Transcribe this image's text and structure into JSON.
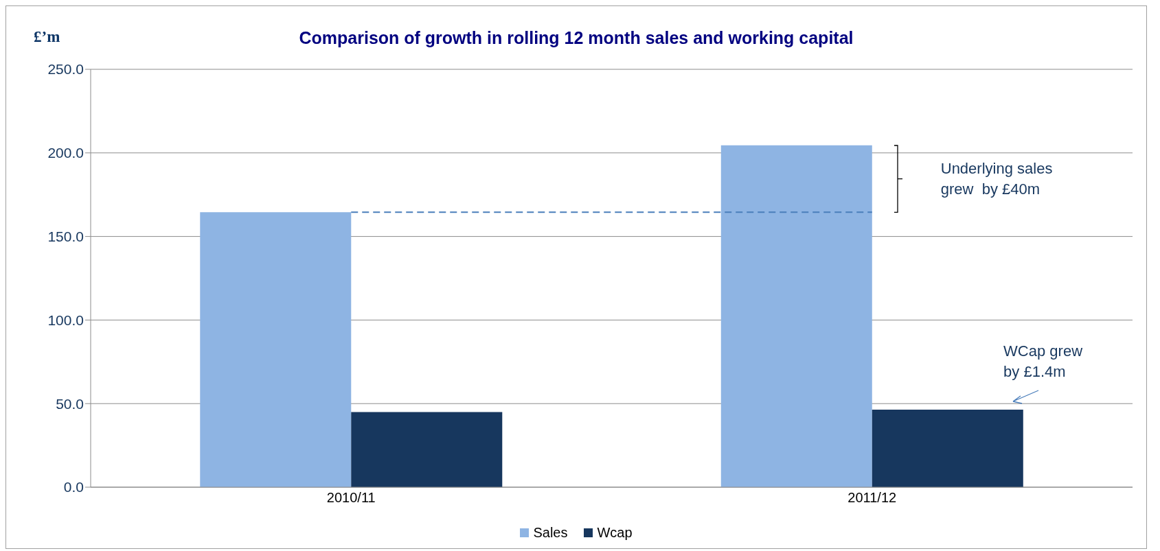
{
  "chart_data": {
    "type": "bar",
    "title": "Comparison of growth in rolling 12 month sales and working capital",
    "ylabel": "£’m",
    "categories": [
      "2010/11",
      "2011/12"
    ],
    "series": [
      {
        "name": "Sales",
        "color": "#8eb4e3",
        "values": [
          164.5,
          204.5
        ]
      },
      {
        "name": "Wcap",
        "color": "#17375e",
        "values": [
          45.0,
          46.4
        ]
      }
    ],
    "ylim": [
      0,
      250
    ],
    "yticks": [
      {
        "value": 0,
        "label": "0.0"
      },
      {
        "value": 50,
        "label": "50.0"
      },
      {
        "value": 100,
        "label": "100.0"
      },
      {
        "value": 150,
        "label": "150.0"
      },
      {
        "value": 200,
        "label": "200.0"
      },
      {
        "value": 250,
        "label": "250.0"
      }
    ],
    "grid": "y",
    "legend": "bottom",
    "ref_lines": [
      {
        "axis": "y",
        "value": 164.5,
        "color": "#4a7ebb",
        "line_style": "dashed"
      }
    ],
    "annotations": [
      "Underlying sales grew  by £40m",
      "WCap grew by £1.4m"
    ]
  }
}
